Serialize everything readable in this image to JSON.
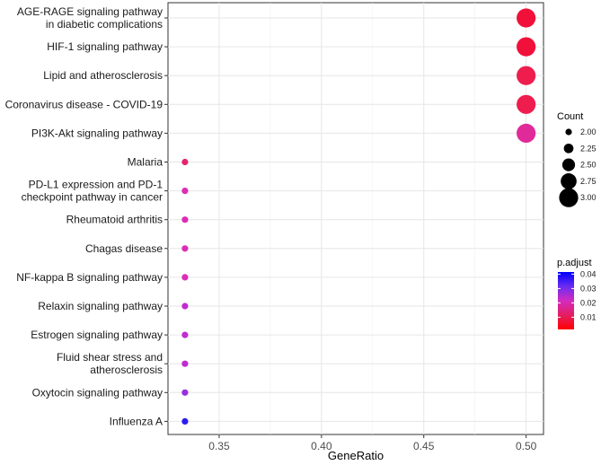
{
  "chart_data": {
    "type": "scatter",
    "title": "",
    "xlabel": "GeneRatio",
    "ylabel": "",
    "xlim": [
      0.325,
      0.5085
    ],
    "x_ticks": [
      0.35,
      0.4,
      0.45,
      0.5
    ],
    "x_tick_labels": [
      "0.35",
      "0.40",
      "0.45",
      "0.50"
    ],
    "grid": true,
    "legend_position": "right",
    "pathways": [
      {
        "label": "AGE-RAGE signaling pathway\nin diabetic complications",
        "gene_ratio": 0.5,
        "count": 3,
        "p_adjust": 0.003,
        "color": "#F1103A"
      },
      {
        "label": "HIF-1 signaling pathway",
        "gene_ratio": 0.5,
        "count": 3,
        "p_adjust": 0.003,
        "color": "#F1103A"
      },
      {
        "label": "Lipid and atherosclerosis",
        "gene_ratio": 0.5,
        "count": 3,
        "p_adjust": 0.006,
        "color": "#EE1D4E"
      },
      {
        "label": "Coronavirus disease - COVID-19",
        "gene_ratio": 0.5,
        "count": 3,
        "p_adjust": 0.006,
        "color": "#EE1D4E"
      },
      {
        "label": "PI3K-Akt signaling pathway",
        "gene_ratio": 0.5,
        "count": 3,
        "p_adjust": 0.014,
        "color": "#E02A9A"
      },
      {
        "label": "Malaria",
        "gene_ratio": 0.3333,
        "count": 2,
        "p_adjust": 0.013,
        "color": "#E5246E"
      },
      {
        "label": "PD-L1 expression and PD-1\ncheckpoint pathway in cancer",
        "gene_ratio": 0.3333,
        "count": 2,
        "p_adjust": 0.017,
        "color": "#DD2CB6"
      },
      {
        "label": "Rheumatoid arthritis",
        "gene_ratio": 0.3333,
        "count": 2,
        "p_adjust": 0.017,
        "color": "#DD2CB6"
      },
      {
        "label": "Chagas disease",
        "gene_ratio": 0.3333,
        "count": 2,
        "p_adjust": 0.017,
        "color": "#DD2CB6"
      },
      {
        "label": "NF-kappa B signaling pathway",
        "gene_ratio": 0.3333,
        "count": 2,
        "p_adjust": 0.017,
        "color": "#DD2CB6"
      },
      {
        "label": "Relaxin signaling pathway",
        "gene_ratio": 0.3333,
        "count": 2,
        "p_adjust": 0.022,
        "color": "#C02CCF"
      },
      {
        "label": "Estrogen signaling pathway",
        "gene_ratio": 0.3333,
        "count": 2,
        "p_adjust": 0.022,
        "color": "#C02CCF"
      },
      {
        "label": "Fluid shear stress and\natherosclerosis",
        "gene_ratio": 0.3333,
        "count": 2,
        "p_adjust": 0.022,
        "color": "#C02CCF"
      },
      {
        "label": "Oxytocin signaling pathway",
        "gene_ratio": 0.3333,
        "count": 2,
        "p_adjust": 0.027,
        "color": "#9A2DE0"
      },
      {
        "label": "Influenza A",
        "gene_ratio": 0.3333,
        "count": 2,
        "p_adjust": 0.041,
        "color": "#2B1BF0"
      }
    ],
    "size_legend": {
      "title": "Count",
      "range": [
        2.0,
        3.0
      ],
      "entries": [
        {
          "value": 2.0,
          "label": "2.00"
        },
        {
          "value": 2.25,
          "label": "2.25"
        },
        {
          "value": 2.5,
          "label": "2.50"
        },
        {
          "value": 2.75,
          "label": "2.75"
        },
        {
          "value": 3.0,
          "label": "3.00"
        }
      ]
    },
    "color_legend": {
      "title": "p.adjust",
      "range": [
        0.0015,
        0.0415
      ],
      "colors_low_to_high": [
        "#FF0000",
        "#E41E60",
        "#D42BC0",
        "#6A2CF0",
        "#0000FF"
      ],
      "ticks": [
        {
          "value": 0.01,
          "label": "0.01"
        },
        {
          "value": 0.02,
          "label": "0.02"
        },
        {
          "value": 0.03,
          "label": "0.03"
        },
        {
          "value": 0.04,
          "label": "0.04"
        }
      ]
    }
  }
}
